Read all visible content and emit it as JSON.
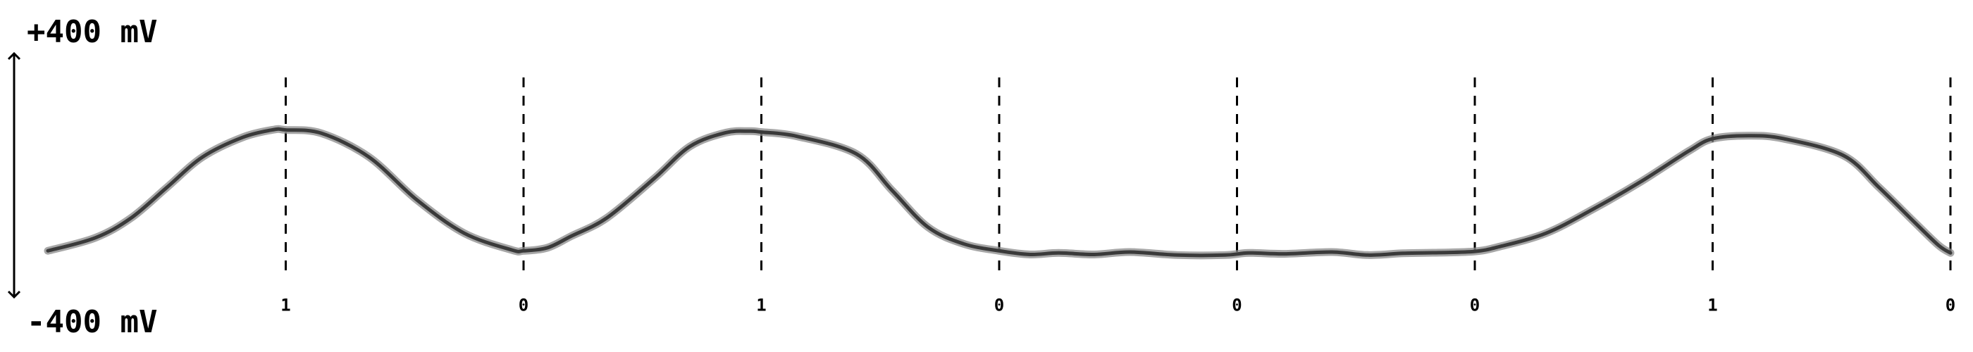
{
  "chart_data": {
    "type": "line",
    "y_max_label": "+400 mV",
    "y_min_label": "-400 mV",
    "ylim": [
      -400,
      400
    ],
    "grid": false,
    "markers": [
      {
        "x": 1.0,
        "label": "1"
      },
      {
        "x": 2.0,
        "label": "0"
      },
      {
        "x": 3.0,
        "label": "1"
      },
      {
        "x": 4.0,
        "label": "0"
      },
      {
        "x": 5.0,
        "label": "0"
      },
      {
        "x": 6.0,
        "label": "0"
      },
      {
        "x": 7.0,
        "label": "1"
      },
      {
        "x": 8.0,
        "label": "0"
      }
    ],
    "series": [
      {
        "x": [
          0.0,
          0.2,
          0.35,
          0.5,
          0.65,
          0.82,
          0.95,
          1.0,
          1.15,
          1.35,
          1.55,
          1.75,
          1.95,
          2.0,
          2.1,
          2.2,
          2.35,
          2.55,
          2.7,
          2.85,
          2.95,
          3.0,
          3.15,
          3.4,
          3.55,
          3.7,
          3.85,
          4.0,
          4.13,
          4.25,
          4.4,
          4.55,
          4.75,
          4.95,
          5.05,
          5.2,
          5.4,
          5.55,
          5.7,
          5.85,
          6.0,
          6.1,
          6.3,
          6.5,
          6.7,
          6.9,
          7.0,
          7.15,
          7.3,
          7.55,
          7.7,
          7.85,
          7.95,
          8.0
        ],
        "y": [
          -248,
          -205,
          -140,
          -40,
          60,
          125,
          150,
          149,
          138,
          60,
          -80,
          -190,
          -245,
          -248,
          -238,
          -200,
          -140,
          -10,
          95,
          140,
          145,
          142,
          128,
          70,
          -50,
          -170,
          -225,
          -248,
          -260,
          -255,
          -260,
          -252,
          -262,
          -262,
          -255,
          -258,
          -252,
          -262,
          -256,
          -254,
          -250,
          -235,
          -190,
          -110,
          -20,
          80,
          120,
          130,
          120,
          65,
          -40,
          -155,
          -230,
          -255
        ]
      }
    ]
  }
}
